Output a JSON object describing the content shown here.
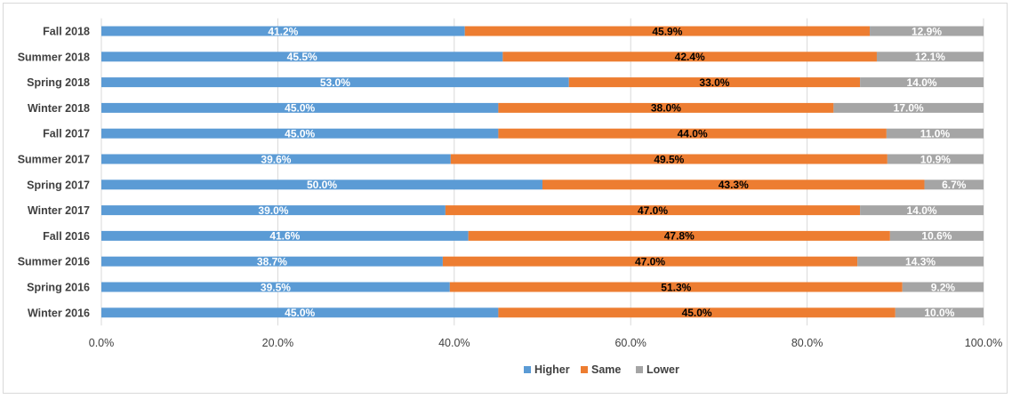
{
  "colors": {
    "Higher": "#5b9bd5",
    "Same": "#ed7d31",
    "Lower": "#a5a5a5",
    "grid": "#d9d9d9"
  },
  "chart_data": {
    "type": "bar",
    "orientation": "horizontal",
    "stacked": "percent",
    "categories": [
      "Fall 2018",
      "Summer 2018",
      "Spring 2018",
      "Winter 2018",
      "Fall 2017",
      "Summer 2017",
      "Spring 2017",
      "Winter 2017",
      "Fall 2016",
      "Summer 2016",
      "Spring 2016",
      "Winter 2016"
    ],
    "series": [
      {
        "name": "Higher",
        "values": [
          41.2,
          45.5,
          53.0,
          45.0,
          45.0,
          39.6,
          50.0,
          39.0,
          41.6,
          38.7,
          39.5,
          45.0
        ],
        "labels": [
          "41.2%",
          "45.5%",
          "53.0%",
          "45.0%",
          "45.0%",
          "39.6%",
          "50.0%",
          "39.0%",
          "41.6%",
          "38.7%",
          "39.5%",
          "45.0%"
        ]
      },
      {
        "name": "Same",
        "values": [
          45.9,
          42.4,
          33.0,
          38.0,
          44.0,
          49.5,
          43.3,
          47.0,
          47.8,
          47.0,
          51.3,
          45.0
        ],
        "labels": [
          "45.9%",
          "42.4%",
          "33.0%",
          "38.0%",
          "44.0%",
          "49.5%",
          "43.3%",
          "47.0%",
          "47.8%",
          "47.0%",
          "51.3%",
          "45.0%"
        ]
      },
      {
        "name": "Lower",
        "values": [
          12.9,
          12.1,
          14.0,
          17.0,
          11.0,
          10.9,
          6.7,
          14.0,
          10.6,
          14.3,
          9.2,
          10.0
        ],
        "labels": [
          "12.9%",
          "12.1%",
          "14.0%",
          "17.0%",
          "11.0%",
          "10.9%",
          "6.7%",
          "14.0%",
          "10.6%",
          "14.3%",
          "9.2%",
          "10.0%"
        ]
      }
    ],
    "xlim": [
      0,
      100
    ],
    "xticks": [
      "0.0%",
      "20.0%",
      "40.0%",
      "60.0%",
      "80.0%",
      "100.0%"
    ],
    "xtick_values": [
      0,
      20,
      40,
      60,
      80,
      100
    ],
    "title": "",
    "xlabel": "",
    "ylabel": "",
    "grid": true,
    "legend_position": "bottom"
  }
}
